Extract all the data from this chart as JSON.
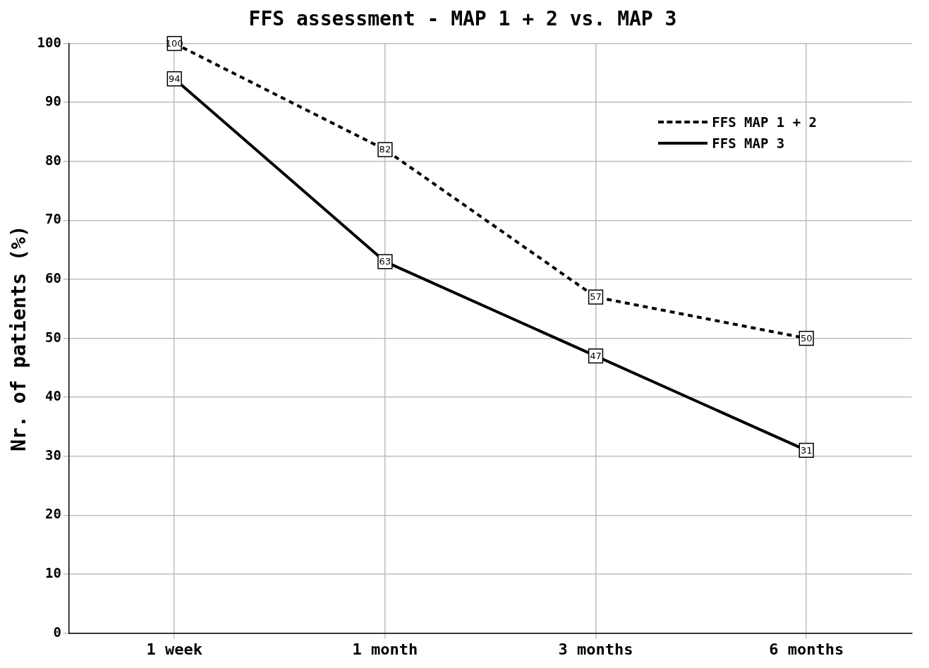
{
  "chart_data": {
    "type": "line",
    "title": "FFS assessment - MAP 1 + 2 vs. MAP 3",
    "ylabel": "Nr. of patients (%)",
    "categories": [
      "1 week",
      "1 month",
      "3 months",
      "6 months"
    ],
    "series": [
      {
        "name": "FFS MAP 1 + 2",
        "color": "#000000",
        "values": [
          100,
          82,
          57,
          50
        ],
        "line_style": "dashed"
      },
      {
        "name": "FFS MAP 3",
        "color": "#000000",
        "values": [
          94,
          63,
          47,
          31
        ],
        "line_style": "solid"
      }
    ],
    "ylim": [
      0,
      100
    ],
    "yticks": [
      0,
      10,
      20,
      30,
      40,
      50,
      60,
      70,
      80,
      90,
      100
    ],
    "grid": true,
    "legend": "top right",
    "marker": "square",
    "data_labels": true
  }
}
